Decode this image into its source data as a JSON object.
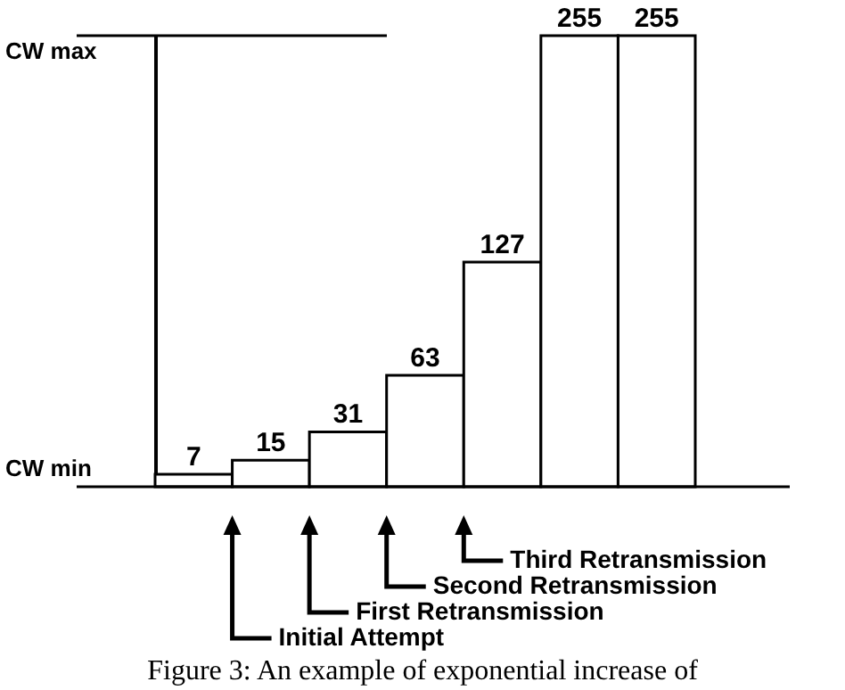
{
  "chart_data": {
    "type": "bar",
    "categories": [
      null,
      null,
      null,
      null,
      null,
      null,
      null
    ],
    "values": [
      7,
      15,
      31,
      63,
      127,
      255,
      255
    ],
    "color": "#ffffff",
    "data_labels": true,
    "ref_lines": [
      {
        "axis": "y",
        "value": 255,
        "label": "CW max"
      },
      {
        "axis": "y",
        "value": 0,
        "label": "CW min"
      }
    ],
    "annotations": [
      "Initial Attempt",
      "First Retransmission",
      "Second Retransmission",
      "Third Retransmission",
      "Figure 3: An example of exponential increase of"
    ]
  }
}
